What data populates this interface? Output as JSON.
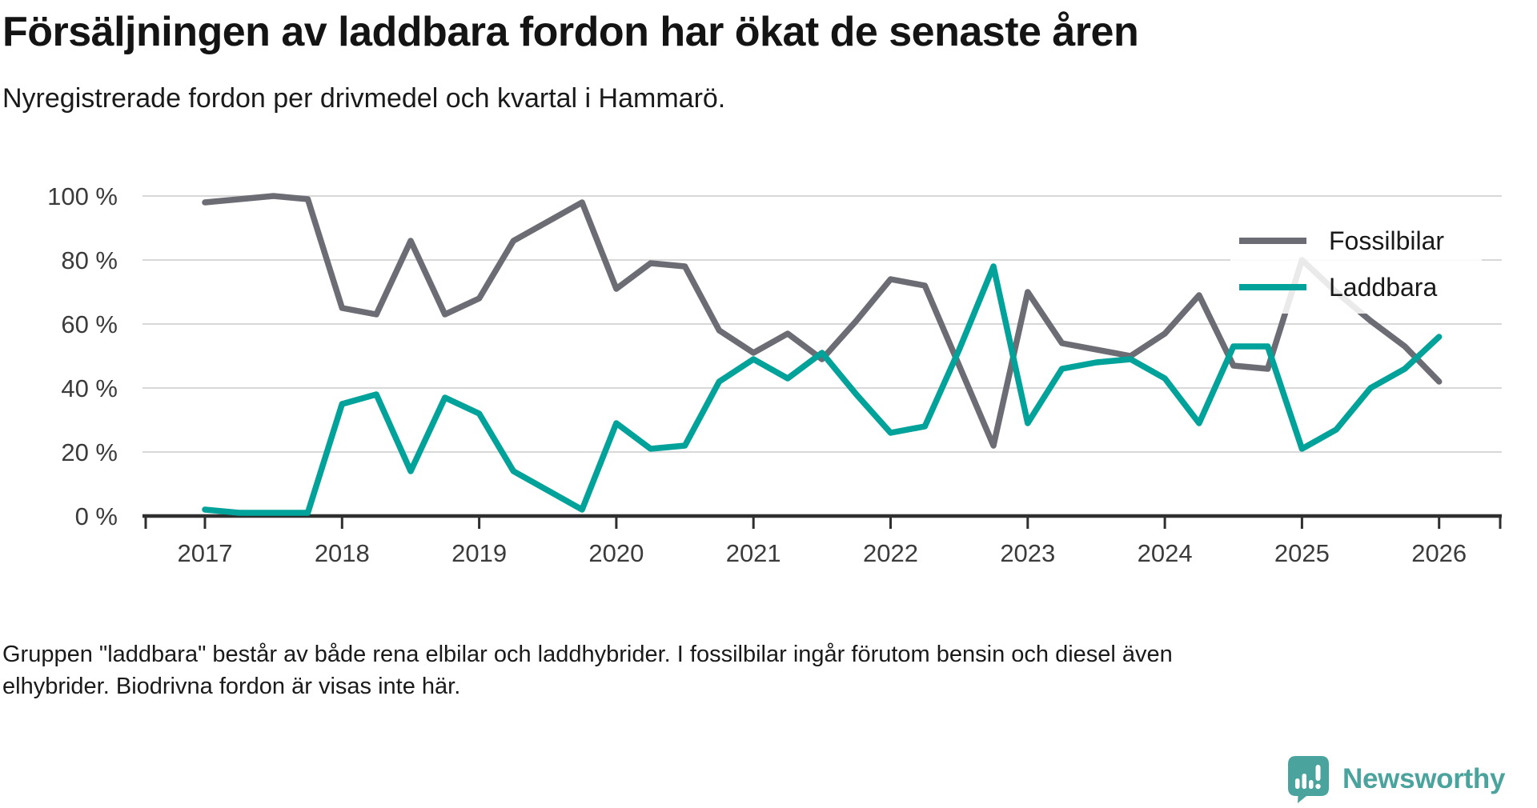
{
  "header": {
    "title": "Försäljningen av laddbara fordon har ökat de senaste åren",
    "subtitle": "Nyregistrerade fordon per drivmedel och kvartal i Hammarö."
  },
  "chart_data": {
    "type": "line",
    "unit": "percent share of newly registered vehicles",
    "frequency": "quarterly",
    "start_period": "2017 Q1",
    "end_period": "2026 Q1",
    "x_tick_labels": [
      "2017",
      "2018",
      "2019",
      "2020",
      "2021",
      "2022",
      "2023",
      "2024",
      "2025",
      "2026"
    ],
    "y_tick_values": [
      0,
      20,
      40,
      60,
      80,
      100
    ],
    "y_tick_labels": [
      "0 %",
      "20 %",
      "40 %",
      "60 %",
      "80 %",
      "100 %"
    ],
    "ylim": [
      0,
      100
    ],
    "grid": "horizontal",
    "legend_position": "top-right",
    "series": [
      {
        "name": "Fossilbilar",
        "color": "#6c6c75",
        "values": [
          98,
          99,
          100,
          99,
          65,
          63,
          86,
          63,
          68,
          86,
          92,
          98,
          71,
          79,
          78,
          58,
          51,
          57,
          49,
          61,
          74,
          72,
          47,
          22,
          70,
          54,
          52,
          50,
          57,
          69,
          47,
          46,
          80,
          70,
          61,
          53,
          42
        ]
      },
      {
        "name": "Laddbara",
        "color": "#00a299",
        "values": [
          2,
          1,
          1,
          1,
          35,
          38,
          14,
          37,
          32,
          14,
          8,
          2,
          29,
          21,
          22,
          42,
          49,
          43,
          51,
          38,
          26,
          28,
          52,
          78,
          29,
          46,
          48,
          49,
          43,
          29,
          53,
          53,
          21,
          27,
          40,
          46,
          56
        ]
      }
    ],
    "axis_color": "#2f2f2f",
    "gridline_color": "#d8d8d8",
    "tick_label_color": "#3b3b3b"
  },
  "footer": {
    "note": "Gruppen \"laddbara\" består av både rena elbilar och laddhybrider. I fossilbilar ingår förutom bensin och diesel även elhybrider. Biodrivna fordon är visas inte här."
  },
  "logo": {
    "text": "Newsworthy",
    "color": "#4ba39d",
    "icon": "chart-speech-bubble-icon"
  }
}
